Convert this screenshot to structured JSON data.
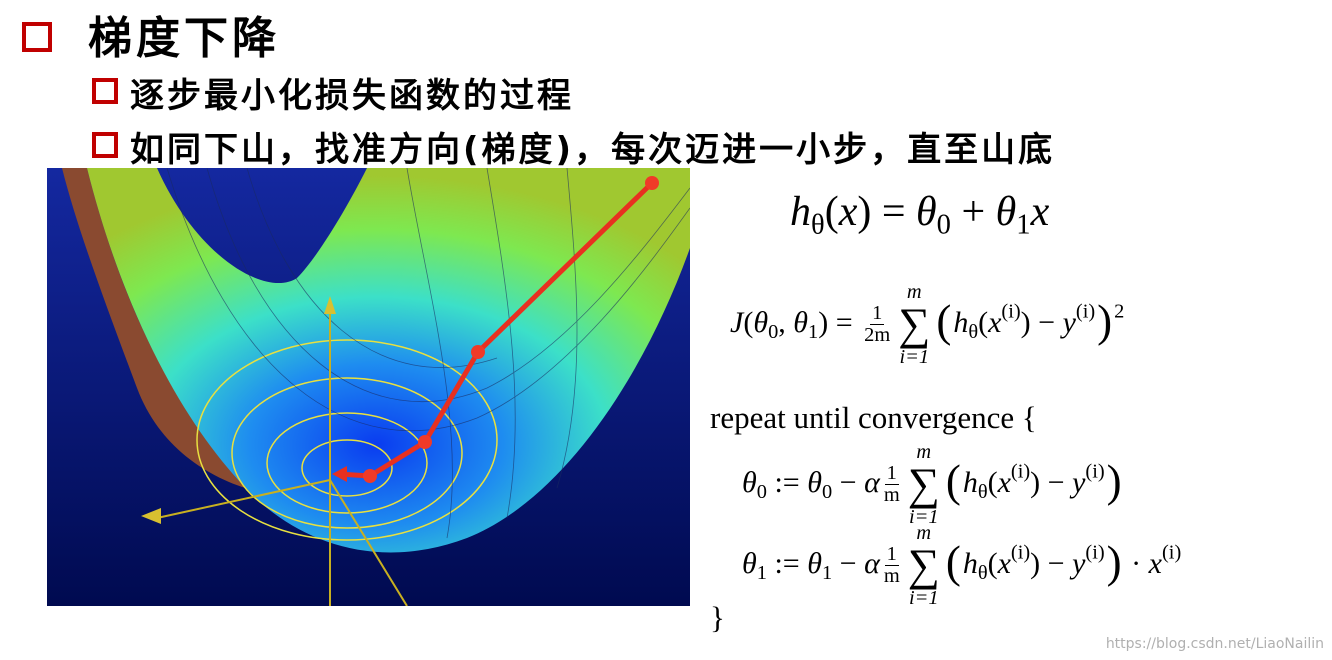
{
  "header": {
    "title": "梯度下降"
  },
  "bullets": [
    "逐步最小化损失函数的过程",
    "如同下山，找准方向(梯度)，每次迈进一小步，直至山底"
  ],
  "formulas": {
    "hypothesis": [
      {
        "i": "h"
      },
      {
        "sub": "θ"
      },
      {
        "r": "("
      },
      {
        "i": "x"
      },
      {
        "r": ") = "
      },
      {
        "i": "θ"
      },
      {
        "sub": "0"
      },
      {
        "r": " + "
      },
      {
        "i": "θ"
      },
      {
        "sub": "1"
      },
      {
        "i": "x"
      }
    ],
    "cost": [
      {
        "i": "J"
      },
      {
        "r": "("
      },
      {
        "i": "θ"
      },
      {
        "sub": "0"
      },
      {
        "r": ", "
      },
      {
        "i": "θ"
      },
      {
        "sub": "1"
      },
      {
        "r": ") = "
      },
      {
        "frac": {
          "num": "1",
          "den": "2m"
        }
      },
      {
        "sum": {
          "top": "m",
          "sym": "∑",
          "bottom": "i=1"
        }
      },
      {
        "big": "("
      },
      {
        "i": "h"
      },
      {
        "sub": "θ"
      },
      {
        "r": "("
      },
      {
        "i": "x"
      },
      {
        "sup": "(i)"
      },
      {
        "r": ") − "
      },
      {
        "i": "y"
      },
      {
        "sup": "(i)"
      },
      {
        "big": ")"
      },
      {
        "sup": "2"
      }
    ],
    "repeat": "repeat until convergence {",
    "update0": [
      {
        "i": "θ"
      },
      {
        "sub": "0"
      },
      {
        "r": " := "
      },
      {
        "i": "θ"
      },
      {
        "sub": "0"
      },
      {
        "r": " − "
      },
      {
        "i": "α"
      },
      {
        "frac": {
          "num": "1",
          "den": "m"
        }
      },
      {
        "sum": {
          "top": "m",
          "sym": "∑",
          "bottom": "i=1"
        }
      },
      {
        "big": "("
      },
      {
        "i": "h"
      },
      {
        "sub": "θ"
      },
      {
        "r": "("
      },
      {
        "i": "x"
      },
      {
        "sup": "(i)"
      },
      {
        "r": ") − "
      },
      {
        "i": "y"
      },
      {
        "sup": "(i)"
      },
      {
        "big": ")"
      }
    ],
    "update1": [
      {
        "i": "θ"
      },
      {
        "sub": "1"
      },
      {
        "r": " := "
      },
      {
        "i": "θ"
      },
      {
        "sub": "1"
      },
      {
        "r": " − "
      },
      {
        "i": "α"
      },
      {
        "frac": {
          "num": "1",
          "den": "m"
        }
      },
      {
        "sum": {
          "top": "m",
          "sym": "∑",
          "bottom": "i=1"
        }
      },
      {
        "big": "("
      },
      {
        "i": "h"
      },
      {
        "sub": "θ"
      },
      {
        "r": "("
      },
      {
        "i": "x"
      },
      {
        "sup": "(i)"
      },
      {
        "r": ") − "
      },
      {
        "i": "y"
      },
      {
        "sup": "(i)"
      },
      {
        "big": ")"
      },
      {
        "r": " · "
      },
      {
        "i": "x"
      },
      {
        "sup": "(i)"
      }
    ],
    "close": "}"
  },
  "watermark": "https://blog.csdn.net/LiaoNailin"
}
